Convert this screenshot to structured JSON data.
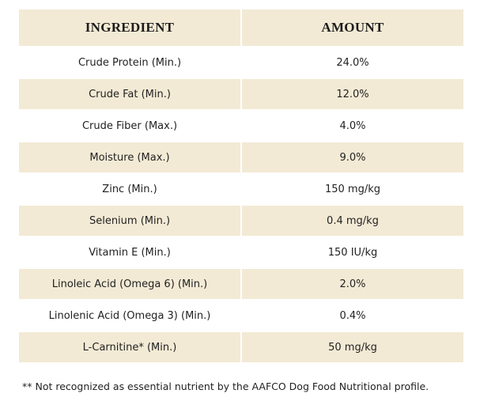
{
  "table": {
    "header": [
      "INGREDIENT",
      "AMOUNT"
    ],
    "rows": [
      [
        "Crude Protein (Min.)",
        "24.0%"
      ],
      [
        "Crude Fat (Min.)",
        "12.0%"
      ],
      [
        "Crude Fiber (Max.)",
        "4.0%"
      ],
      [
        "Moisture (Max.)",
        "9.0%"
      ],
      [
        "Zinc (Min.)",
        "150 mg/kg"
      ],
      [
        "Selenium (Min.)",
        "0.4 mg/kg"
      ],
      [
        "Vitamin E (Min.)",
        "150 IU/kg"
      ],
      [
        "Linoleic Acid (Omega 6) (Min.)",
        "2.0%"
      ],
      [
        "Linolenic Acid (Omega 3) (Min.)",
        "0.4%"
      ],
      [
        "L-Carnitine* (Min.)",
        "50 mg/kg"
      ]
    ]
  },
  "footnote": "** Not recognized as essential nutrient by the AAFCO Dog Food Nutritional profile."
}
